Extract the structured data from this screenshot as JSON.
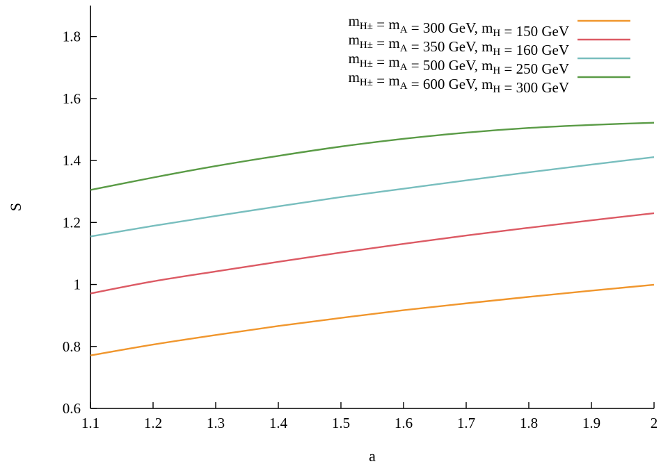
{
  "chart_data": {
    "type": "line",
    "xlabel": "a",
    "ylabel": "S",
    "xlim": [
      1.1,
      2.0
    ],
    "ylim": [
      0.6,
      1.9
    ],
    "xticks": [
      "1.1",
      "1.2",
      "1.3",
      "1.4",
      "1.5",
      "1.6",
      "1.7",
      "1.8",
      "1.9",
      "2"
    ],
    "yticks": [
      "0.6",
      "0.8",
      "1",
      "1.2",
      "1.4",
      "1.6",
      "1.8"
    ],
    "grid": false,
    "legend_position": "top-right",
    "x": [
      1.1,
      1.2,
      1.3,
      1.4,
      1.5,
      1.6,
      1.7,
      1.8,
      1.9,
      2.0
    ],
    "series": [
      {
        "name": "m_{H^±} = m_A = 300 GeV,  m_H = 150 GeV",
        "color": "#f0962d",
        "values": [
          0.771,
          0.806,
          0.837,
          0.866,
          0.892,
          0.917,
          0.939,
          0.96,
          0.98,
          0.999
        ]
      },
      {
        "name": "m_{H^±} = m_A = 350 GeV,  m_H = 160 GeV",
        "color": "#dc5a64",
        "values": [
          0.971,
          1.01,
          1.042,
          1.073,
          1.103,
          1.131,
          1.158,
          1.183,
          1.207,
          1.23
        ]
      },
      {
        "name": "m_{H^±} = m_A = 500 GeV,  m_H = 250 GeV",
        "color": "#78bebe",
        "values": [
          1.155,
          1.189,
          1.221,
          1.252,
          1.282,
          1.309,
          1.336,
          1.362,
          1.387,
          1.411
        ]
      },
      {
        "name": "m_{H^±} = m_A = 600 GeV,  m_H = 300 GeV",
        "color": "#5a9b46",
        "values": [
          1.305,
          1.345,
          1.382,
          1.415,
          1.445,
          1.47,
          1.49,
          1.505,
          1.515,
          1.522
        ]
      }
    ]
  }
}
